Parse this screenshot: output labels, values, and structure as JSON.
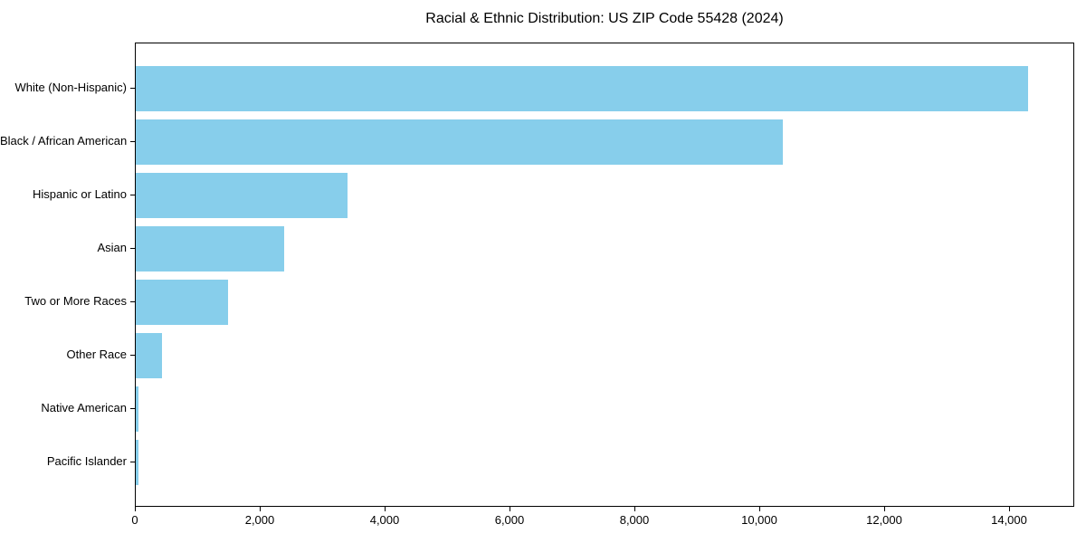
{
  "chart_data": {
    "type": "bar",
    "orientation": "horizontal",
    "title": "Racial & Ethnic Distribution: US ZIP Code 55428 (2024)",
    "categories": [
      "White (Non-Hispanic)",
      "Black / African American",
      "Hispanic or Latino",
      "Asian",
      "Two or More Races",
      "Other Race",
      "Native American",
      "Pacific Islander"
    ],
    "values": [
      14300,
      10360,
      3390,
      2380,
      1480,
      420,
      45,
      40
    ],
    "xlabel": "",
    "ylabel": "",
    "xlim": [
      0,
      15050
    ],
    "xticks": [
      0,
      2000,
      4000,
      6000,
      8000,
      10000,
      12000,
      14000
    ],
    "xtick_labels": [
      "0",
      "2,000",
      "4,000",
      "6,000",
      "8,000",
      "10,000",
      "12,000",
      "14,000"
    ],
    "bar_color": "#87CEEB",
    "frame_color": "#000000",
    "background_color": "#ffffff",
    "grid": false,
    "legend": null
  }
}
